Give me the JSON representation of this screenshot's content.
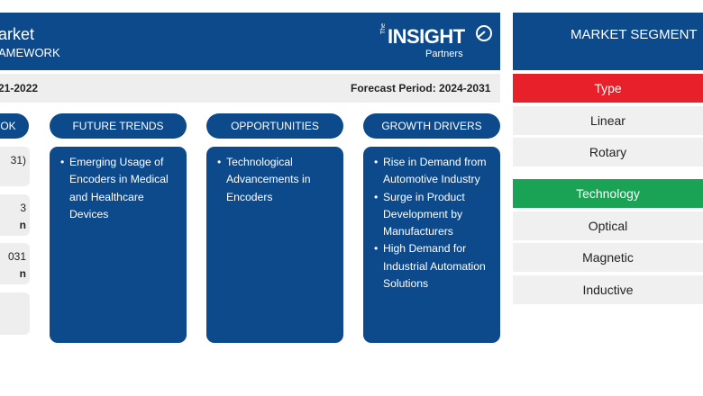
{
  "framework": {
    "title_line1": "arket",
    "title_line2": "AMEWORK",
    "logo": {
      "the": "The",
      "main": "INSIGHT",
      "sub": "Partners"
    },
    "historical_period": "21-2022",
    "forecast_period": "Forecast Period: 2024-2031",
    "columns": [
      {
        "label": "OK",
        "items": []
      },
      {
        "label": "FUTURE TRENDS",
        "items": [
          "Emerging Usage of Encoders in Medical and Healthcare Devices"
        ]
      },
      {
        "label": "OPPORTUNITIES",
        "items": [
          "Technological Advancements in Encoders"
        ]
      },
      {
        "label": "GROWTH DRIVERS",
        "items": [
          "Rise in Demand from Automotive Industry",
          "Surge in Product Development by Manufacturers",
          "High Demand for Industrial Automation Solutions"
        ]
      }
    ],
    "outlook_boxes": [
      {
        "line1": "31)",
        "line2": ""
      },
      {
        "line1": "3",
        "line2": "n"
      },
      {
        "line1": "031",
        "line2": "n"
      },
      {
        "line1": "",
        "line2": ""
      }
    ]
  },
  "segments": {
    "header": "MARKET SEGMENT",
    "groups": [
      {
        "label": "Type",
        "color": "#e8202a",
        "items": [
          "Linear",
          "Rotary"
        ]
      },
      {
        "label": "Technology",
        "color": "#1aa354",
        "items": [
          "Optical",
          "Magnetic",
          "Inductive"
        ]
      }
    ]
  },
  "colors": {
    "primary": "#0d4a8c",
    "band": "#eeeeee"
  }
}
